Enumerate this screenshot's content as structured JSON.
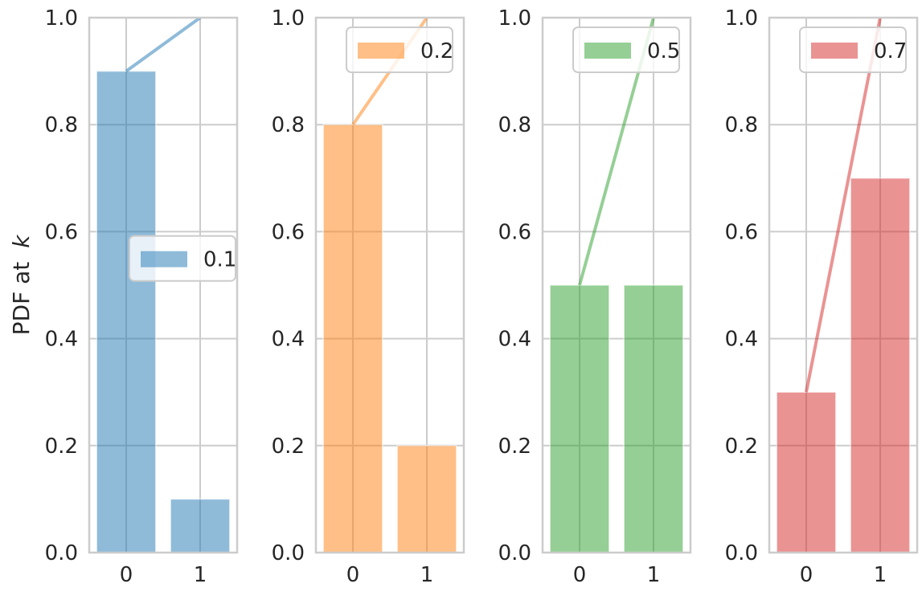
{
  "chart_data": {
    "type": "bar",
    "ylabel_prefix": "PDF at ",
    "ylabel_var": "k",
    "ylim": [
      0,
      1
    ],
    "yticks": [
      "0.0",
      "0.2",
      "0.4",
      "0.6",
      "0.8",
      "1.0"
    ],
    "ytick_values": [
      0,
      0.2,
      0.4,
      0.6,
      0.8,
      1.0
    ],
    "categories": [
      "0",
      "1"
    ],
    "grid": true,
    "panels": [
      {
        "legend": "0.1",
        "legend_loc": "center-right",
        "color": "#1f77b4",
        "pdf": [
          0.9,
          0.1
        ],
        "cdf": [
          0.9,
          1.0
        ]
      },
      {
        "legend": "0.2",
        "legend_loc": "upper-right",
        "color": "#ff7f0e",
        "pdf": [
          0.8,
          0.2
        ],
        "cdf": [
          0.8,
          1.0
        ]
      },
      {
        "legend": "0.5",
        "legend_loc": "upper-right",
        "color": "#2ca02c",
        "pdf": [
          0.5,
          0.5
        ],
        "cdf": [
          0.5,
          1.0
        ]
      },
      {
        "legend": "0.7",
        "legend_loc": "upper-right",
        "color": "#d62728",
        "pdf": [
          0.3,
          0.7
        ],
        "cdf": [
          0.3,
          1.0
        ]
      }
    ]
  }
}
